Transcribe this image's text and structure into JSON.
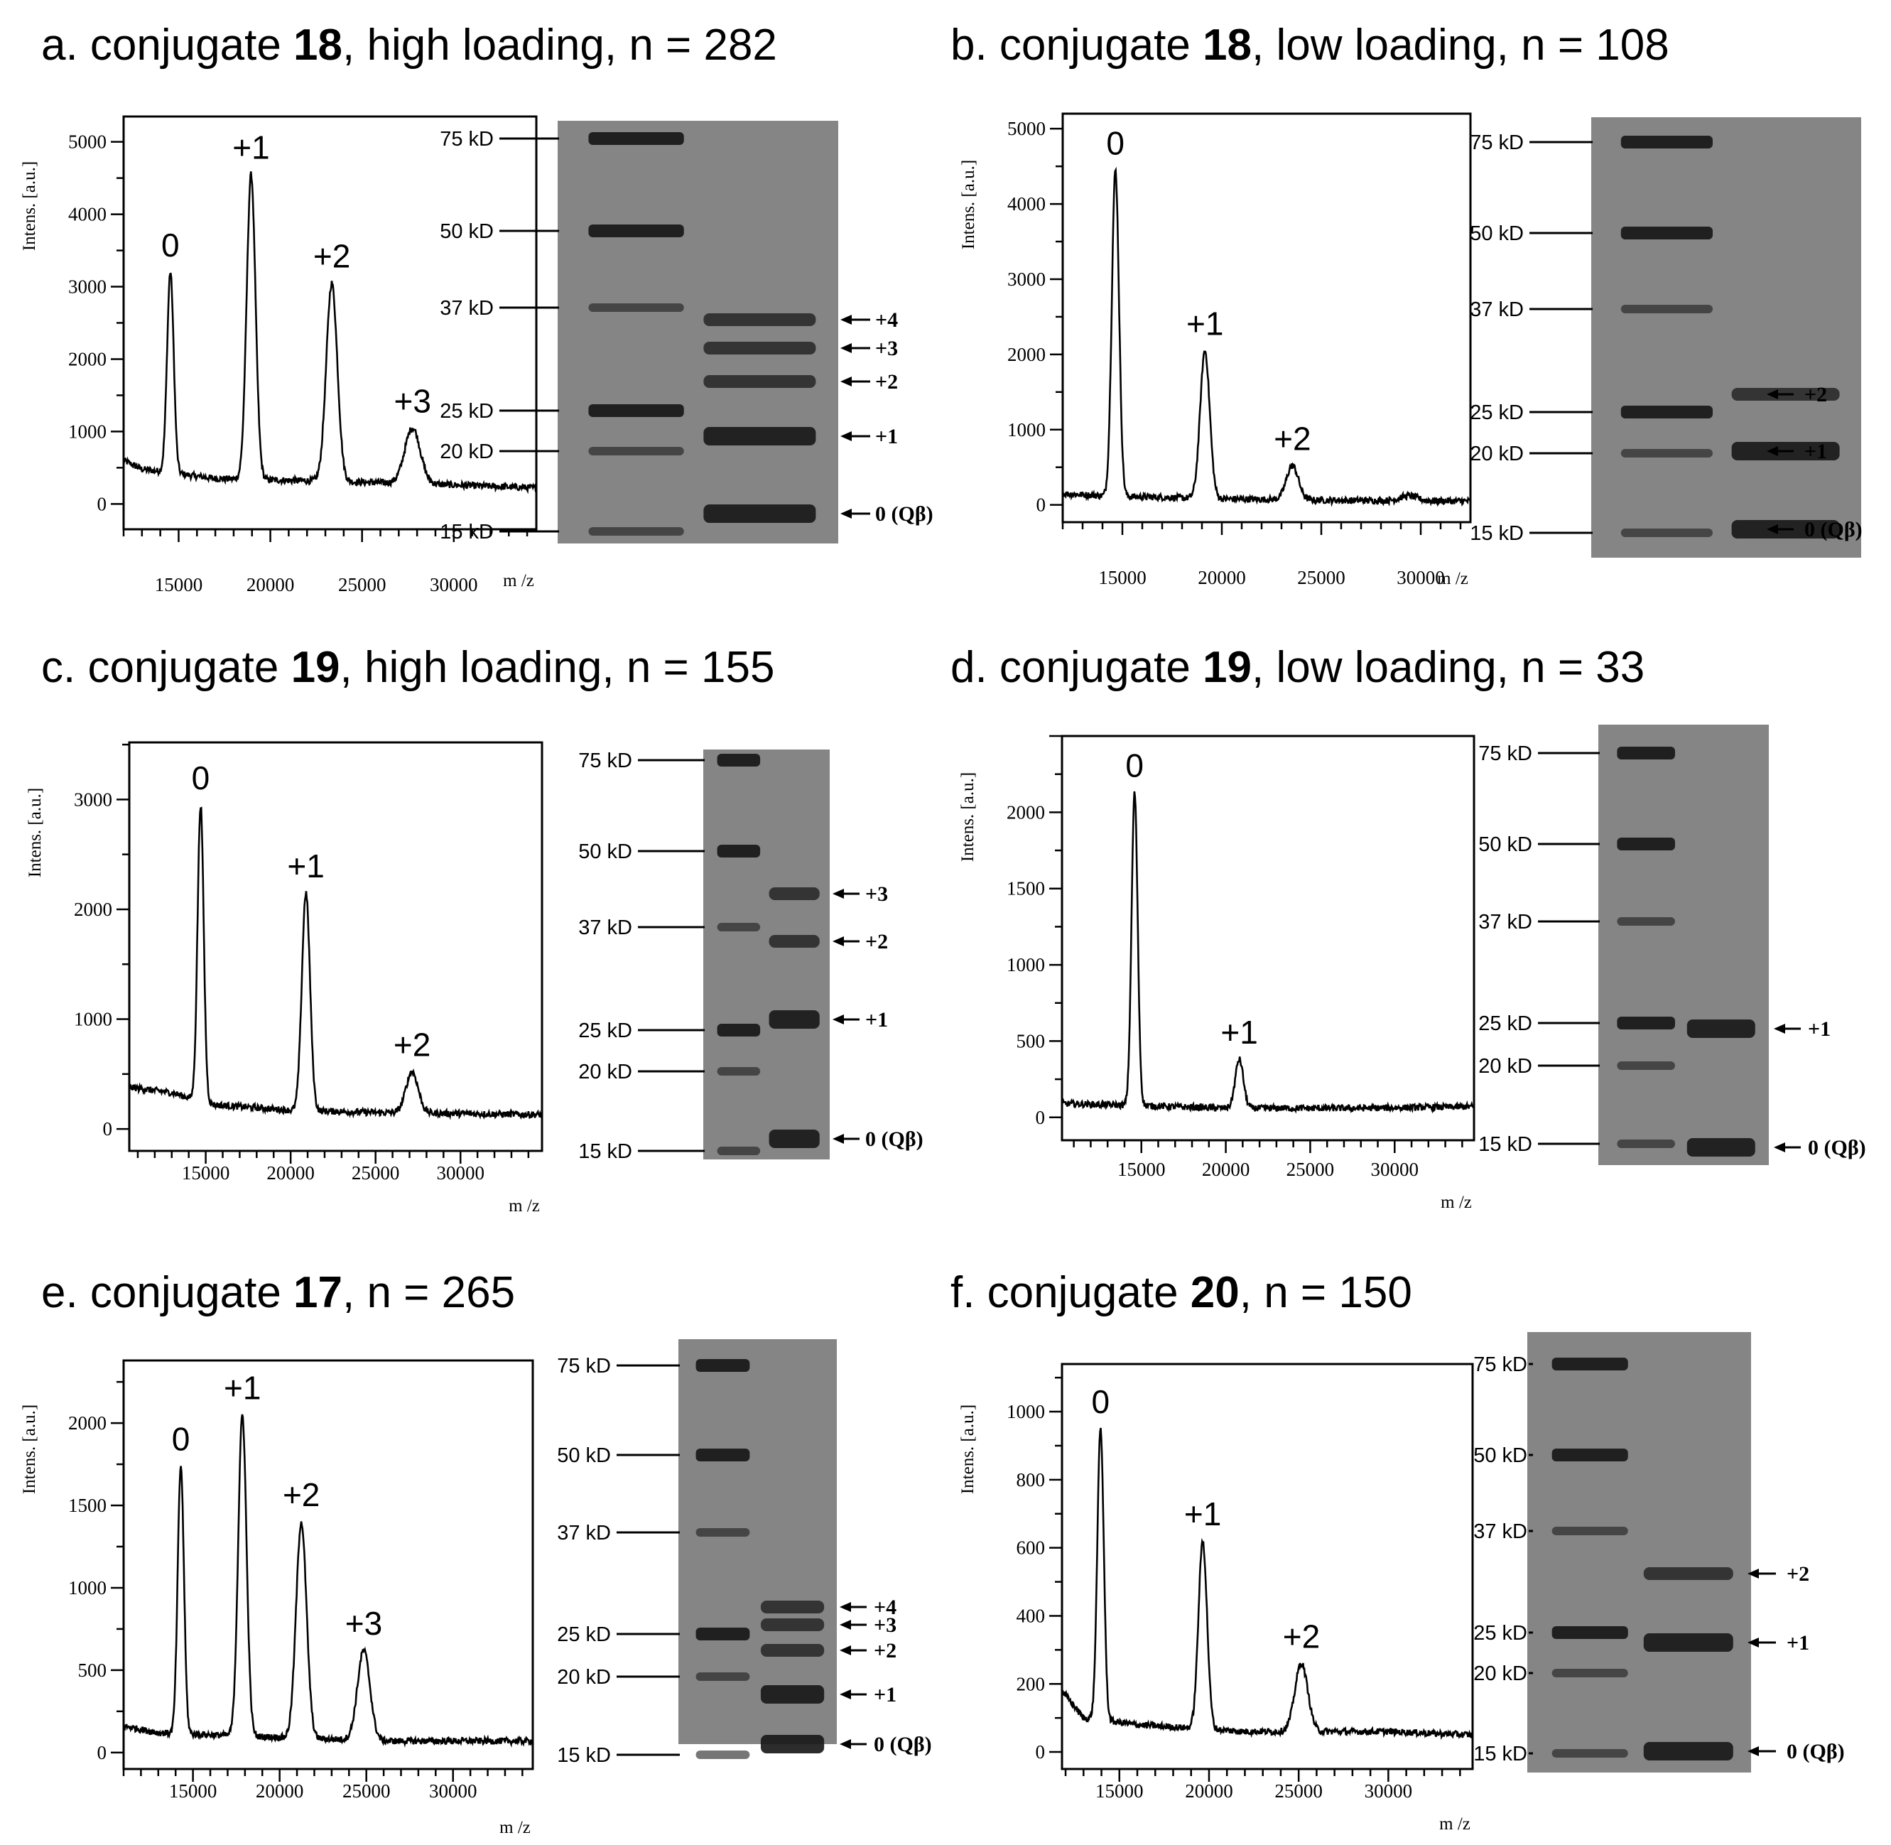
{
  "figure": {
    "panels": [
      {
        "id": "a",
        "prefix": "a. conjugate ",
        "conjugate": "18",
        "suffix": ", high loading, n = 282",
        "gel": {
          "bands": [
            {
              "label": "+4"
            },
            {
              "label": "+3"
            },
            {
              "label": "+2"
            },
            {
              "label": "+1"
            },
            {
              "label": "0 (Qβ)"
            }
          ]
        }
      },
      {
        "id": "b",
        "prefix": "b. conjugate ",
        "conjugate": "18",
        "suffix": ", low loading, n = 108",
        "gel": {
          "bands": [
            {
              "label": "+2"
            },
            {
              "label": "+1"
            },
            {
              "label": "0 (Qβ)"
            }
          ]
        }
      },
      {
        "id": "c",
        "prefix": "c. conjugate ",
        "conjugate": "19",
        "suffix": ", high loading, n = 155",
        "gel": {
          "bands": [
            {
              "label": "+3"
            },
            {
              "label": "+2"
            },
            {
              "label": "+1"
            },
            {
              "label": "0 (Qβ)"
            }
          ]
        }
      },
      {
        "id": "d",
        "prefix": "d. conjugate ",
        "conjugate": "19",
        "suffix": ", low loading, n = 33",
        "gel": {
          "bands": [
            {
              "label": "+1"
            },
            {
              "label": "0 (Qβ)"
            }
          ]
        }
      },
      {
        "id": "e",
        "prefix": "e. conjugate ",
        "conjugate": "17",
        "suffix": ", n = 265",
        "gel": {
          "bands": [
            {
              "label": "+4"
            },
            {
              "label": "+3"
            },
            {
              "label": "+2"
            },
            {
              "label": "+1"
            },
            {
              "label": "0 (Qβ)"
            }
          ]
        }
      },
      {
        "id": "f",
        "prefix": "f. conjugate ",
        "conjugate": "20",
        "suffix": ", n = 150",
        "gel": {
          "bands": [
            {
              "label": "+2"
            },
            {
              "label": "+1"
            },
            {
              "label": "0 (Qβ)"
            }
          ]
        }
      }
    ],
    "marker_labels": [
      "75 kD",
      "50 kD",
      "37 kD",
      "25 kD",
      "20 kD",
      "15 kD"
    ],
    "colors": {
      "gel_background": "#858585",
      "band": "#1a1a1a",
      "trace": "#000000"
    }
  },
  "chart_data": [
    {
      "panel": "a",
      "type": "line",
      "xlabel": "m /z",
      "ylabel": "Intens. [a.u.]",
      "xlim": [
        12000,
        34500
      ],
      "ylim": [
        -350,
        5350
      ],
      "xticks": [
        15000,
        20000,
        25000,
        30000
      ],
      "yticks": [
        0,
        1000,
        2000,
        3000,
        4000,
        5000
      ],
      "baseline": [
        [
          12000,
          600
        ],
        [
          13000,
          480
        ],
        [
          14000,
          450
        ],
        [
          17000,
          350
        ],
        [
          22000,
          320
        ],
        [
          28000,
          280
        ],
        [
          34500,
          220
        ]
      ],
      "peaks": [
        {
          "label": "0",
          "x": 14550,
          "y": 3200
        },
        {
          "label": "+1",
          "x": 18950,
          "y": 4550
        },
        {
          "label": "+2",
          "x": 23350,
          "y": 3050
        },
        {
          "label": "+3",
          "x": 27750,
          "y": 1050
        }
      ]
    },
    {
      "panel": "b",
      "type": "line",
      "xlabel": "m /z",
      "ylabel": "Intens. [a.u.]",
      "xlim": [
        12000,
        32500
      ],
      "ylim": [
        -230,
        5200
      ],
      "xticks": [
        15000,
        20000,
        25000,
        30000
      ],
      "yticks": [
        0,
        1000,
        2000,
        3000,
        4000,
        5000
      ],
      "baseline": [
        [
          12000,
          150
        ],
        [
          14000,
          120
        ],
        [
          20000,
          80
        ],
        [
          26000,
          60
        ],
        [
          32500,
          50
        ]
      ],
      "peaks": [
        {
          "label": "0",
          "x": 14650,
          "y": 4450
        },
        {
          "label": "+1",
          "x": 19150,
          "y": 2050
        },
        {
          "label": "+2",
          "x": 23550,
          "y": 520
        },
        {
          "label": "",
          "x": 29400,
          "y": 120
        }
      ]
    },
    {
      "panel": "c",
      "type": "line",
      "xlabel": "m /z",
      "ylabel": "Intens. [a.u.]",
      "xlim": [
        10500,
        34800
      ],
      "ylim": [
        -200,
        3520
      ],
      "xticks": [
        15000,
        20000,
        25000,
        30000
      ],
      "yticks": [
        0,
        1000,
        2000,
        3000
      ],
      "baseline": [
        [
          10500,
          380
        ],
        [
          13000,
          330
        ],
        [
          15500,
          220
        ],
        [
          20000,
          170
        ],
        [
          25000,
          150
        ],
        [
          34800,
          130
        ]
      ],
      "peaks": [
        {
          "label": "0",
          "x": 14700,
          "y": 2950
        },
        {
          "label": "+1",
          "x": 20900,
          "y": 2150
        },
        {
          "label": "+2",
          "x": 27150,
          "y": 520
        }
      ]
    },
    {
      "panel": "d",
      "type": "line",
      "xlabel": "m /z",
      "ylabel": "Intens. [a.u.]",
      "xlim": [
        10300,
        34700
      ],
      "ylim": [
        -150,
        2500
      ],
      "xticks": [
        15000,
        20000,
        25000,
        30000
      ],
      "yticks": [
        0,
        500,
        1000,
        1500,
        2000
      ],
      "baseline": [
        [
          10300,
          90
        ],
        [
          14000,
          80
        ],
        [
          20000,
          60
        ],
        [
          28000,
          60
        ],
        [
          34700,
          70
        ]
      ],
      "peaks": [
        {
          "label": "0",
          "x": 14600,
          "y": 2130
        },
        {
          "label": "+1",
          "x": 20800,
          "y": 380
        }
      ]
    },
    {
      "panel": "e",
      "type": "line",
      "xlabel": "m /z",
      "ylabel": "Intens. [a.u.]",
      "xlim": [
        11000,
        34600
      ],
      "ylim": [
        -100,
        2380
      ],
      "xticks": [
        15000,
        20000,
        25000,
        30000
      ],
      "yticks": [
        0,
        500,
        1000,
        1500,
        2000
      ],
      "baseline": [
        [
          11000,
          160
        ],
        [
          13000,
          120
        ],
        [
          18000,
          100
        ],
        [
          26000,
          70
        ],
        [
          34600,
          70
        ]
      ],
      "peaks": [
        {
          "label": "0",
          "x": 14300,
          "y": 1740
        },
        {
          "label": "+1",
          "x": 17850,
          "y": 2050
        },
        {
          "label": "+2",
          "x": 21250,
          "y": 1400
        },
        {
          "label": "+3",
          "x": 24850,
          "y": 620
        }
      ]
    },
    {
      "panel": "f",
      "type": "line",
      "xlabel": "m /z",
      "ylabel": "Intens. [a.u.]",
      "xlim": [
        11800,
        34700
      ],
      "ylim": [
        -50,
        1140
      ],
      "xticks": [
        15000,
        20000,
        25000,
        30000
      ],
      "yticks": [
        0,
        200,
        400,
        600,
        800,
        1000
      ],
      "baseline": [
        [
          11800,
          180
        ],
        [
          13000,
          100
        ],
        [
          16000,
          80
        ],
        [
          22000,
          60
        ],
        [
          30000,
          60
        ],
        [
          34700,
          50
        ]
      ],
      "peaks": [
        {
          "label": "0",
          "x": 13950,
          "y": 950
        },
        {
          "label": "+1",
          "x": 19650,
          "y": 620
        },
        {
          "label": "+2",
          "x": 25150,
          "y": 260
        }
      ]
    }
  ]
}
